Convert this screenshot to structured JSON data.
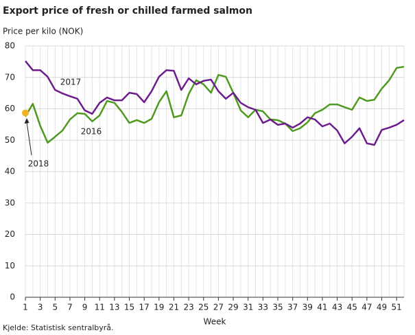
{
  "chart_data": {
    "type": "line",
    "title": "Export price of fresh or chilled farmed salmon",
    "y_label": "Price per kilo (NOK)",
    "x_label": "Week",
    "source": "Kjelde: Statistisk sentralbyrå.",
    "x": [
      1,
      2,
      3,
      4,
      5,
      6,
      7,
      8,
      9,
      10,
      11,
      12,
      13,
      14,
      15,
      16,
      17,
      18,
      19,
      20,
      21,
      22,
      23,
      24,
      25,
      26,
      27,
      28,
      29,
      30,
      31,
      32,
      33,
      34,
      35,
      36,
      37,
      38,
      39,
      40,
      41,
      42,
      43,
      44,
      45,
      46,
      47,
      48,
      49,
      50,
      51,
      52
    ],
    "xlim": [
      1,
      52
    ],
    "xticks": [
      1,
      3,
      5,
      7,
      9,
      11,
      13,
      15,
      17,
      19,
      21,
      23,
      25,
      27,
      29,
      31,
      33,
      35,
      37,
      39,
      41,
      43,
      45,
      47,
      49,
      51
    ],
    "ylim": [
      0,
      80
    ],
    "yticks": [
      0,
      10,
      20,
      30,
      40,
      50,
      60,
      70,
      80
    ],
    "grid": true,
    "series": [
      {
        "name": "2016",
        "color": "#4e9a1e",
        "values": [
          57.5,
          61.6,
          54.6,
          49.2,
          51.1,
          53.1,
          56.6,
          58.6,
          58.4,
          56,
          57.9,
          62.5,
          61.9,
          59,
          55.5,
          56.4,
          55.5,
          56.8,
          62.1,
          65.6,
          57.3,
          57.9,
          64.7,
          69.1,
          67.8,
          65.1,
          70.8,
          70.2,
          65.1,
          59.5,
          57.3,
          59.7,
          59.2,
          56.6,
          56.4,
          55.3,
          52.9,
          53.8,
          55.7,
          58.6,
          59.7,
          61.4,
          61.4,
          60.5,
          59.7,
          63.6,
          62.5,
          62.9,
          66.4,
          69.1,
          73,
          73.4
        ]
      },
      {
        "name": "2017",
        "color": "#6c1d8b",
        "values": [
          75.2,
          72.3,
          72.3,
          70.2,
          66,
          64.9,
          64,
          63.2,
          59.5,
          58.4,
          61.9,
          63.6,
          62.7,
          62.7,
          65.1,
          64.7,
          62.1,
          65.6,
          70.2,
          72.3,
          72.1,
          66,
          69.7,
          67.8,
          68.9,
          69.3,
          65.6,
          63.2,
          65.1,
          61.9,
          60.5,
          59.7,
          55.5,
          56.6,
          54.9,
          55.3,
          54,
          55.3,
          57.3,
          56.6,
          54.4,
          55.3,
          53.1,
          49,
          51.1,
          53.8,
          49,
          48.5,
          53.3,
          54,
          54.9,
          56.4
        ]
      },
      {
        "name": "2018",
        "color": "#f0b323",
        "values": [
          58.7,
          null,
          null,
          null,
          null,
          null,
          null,
          null,
          null,
          null,
          null,
          null,
          null,
          null,
          null,
          null,
          null,
          null,
          null,
          null,
          null,
          null,
          null,
          null,
          null,
          null,
          null,
          null,
          null,
          null,
          null,
          null,
          null,
          null,
          null,
          null,
          null,
          null,
          null,
          null,
          null,
          null,
          null,
          null,
          null,
          null,
          null,
          null,
          null,
          null,
          null,
          null
        ]
      }
    ]
  }
}
